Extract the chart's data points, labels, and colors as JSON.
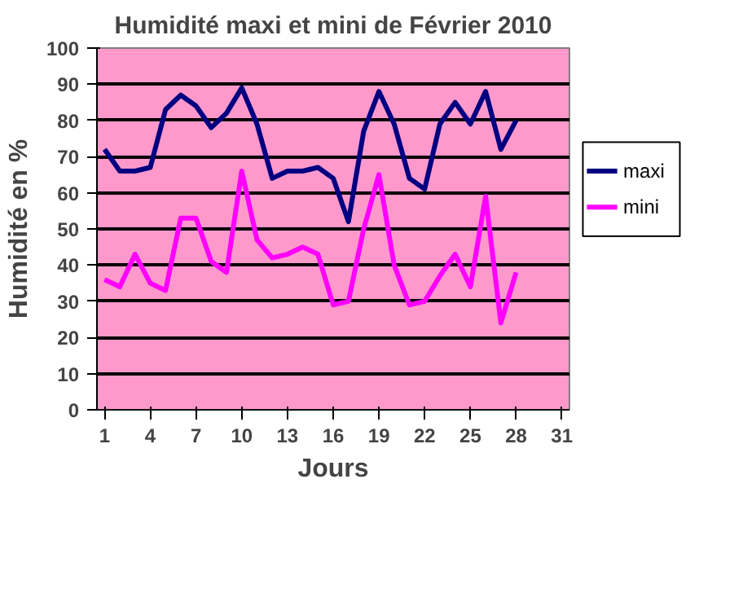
{
  "chart_data": {
    "type": "line",
    "title": "Humidité maxi et mini de Février 2010",
    "xlabel": "Jours",
    "ylabel": "Humidité en %",
    "x": [
      1,
      2,
      3,
      4,
      5,
      6,
      7,
      8,
      9,
      10,
      11,
      12,
      13,
      14,
      15,
      16,
      17,
      18,
      19,
      20,
      21,
      22,
      23,
      24,
      25,
      26,
      27,
      28
    ],
    "series": [
      {
        "name": "maxi",
        "color": "#000080",
        "values": [
          72,
          66,
          66,
          67,
          83,
          87,
          84,
          78,
          82,
          89,
          79,
          64,
          66,
          66,
          67,
          64,
          52,
          77,
          88,
          79,
          64,
          61,
          79,
          85,
          79,
          88,
          72,
          80
        ]
      },
      {
        "name": "mini",
        "color": "#ff00ff",
        "values": [
          36,
          34,
          43,
          35,
          33,
          53,
          53,
          41,
          38,
          66,
          47,
          42,
          43,
          45,
          43,
          29,
          30,
          50,
          65,
          40,
          29,
          30,
          37,
          43,
          34,
          59,
          24,
          38
        ]
      }
    ],
    "xlim": [
      0.5,
      31.5
    ],
    "xticks": [
      1,
      4,
      7,
      10,
      13,
      16,
      19,
      22,
      25,
      28,
      31
    ],
    "ylim": [
      0,
      100
    ],
    "yticks": [
      0,
      10,
      20,
      30,
      40,
      50,
      60,
      70,
      80,
      90,
      100
    ],
    "grid": "y",
    "legend": "right",
    "marker": "none",
    "line_style": "solid"
  }
}
